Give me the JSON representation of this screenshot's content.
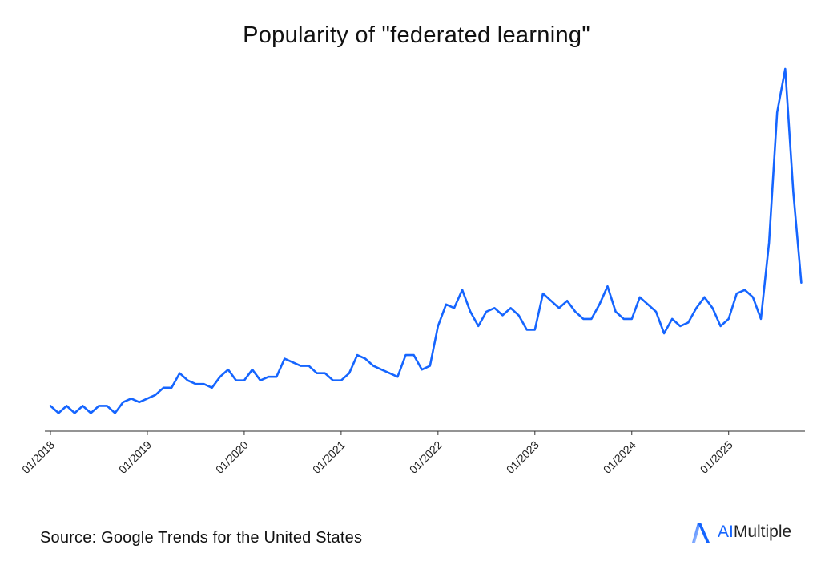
{
  "title": "Popularity of \"federated learning\"",
  "source": "Source: Google Trends for the United States",
  "logo": {
    "prefix": "AI",
    "suffix": "Multiple"
  },
  "colors": {
    "line": "#1565ff",
    "axis": "#555555",
    "text": "#111111",
    "brand": "#1565ff"
  },
  "chart_data": {
    "type": "line",
    "title": "Popularity of \"federated learning\"",
    "xlabel": "",
    "ylabel": "",
    "ylim": [
      0,
      100
    ],
    "grid": false,
    "legend": null,
    "x_tick_labels": [
      "01/2018",
      "01/2019",
      "01/2020",
      "01/2021",
      "01/2022",
      "01/2023",
      "01/2024",
      "01/2025"
    ],
    "x_start": "01/2018",
    "x_end": "10/2025",
    "frequency": "monthly",
    "series": [
      {
        "name": "federated learning",
        "values": [
          7,
          5,
          7,
          5,
          7,
          5,
          7,
          7,
          5,
          8,
          9,
          8,
          9,
          10,
          12,
          12,
          16,
          14,
          13,
          13,
          12,
          15,
          17,
          14,
          14,
          17,
          14,
          15,
          15,
          20,
          19,
          18,
          18,
          16,
          16,
          14,
          14,
          16,
          21,
          20,
          18,
          17,
          16,
          15,
          21,
          21,
          17,
          18,
          29,
          35,
          34,
          39,
          33,
          29,
          33,
          34,
          32,
          34,
          32,
          28,
          28,
          38,
          36,
          34,
          36,
          33,
          31,
          31,
          35,
          40,
          33,
          31,
          31,
          37,
          35,
          33,
          27,
          31,
          29,
          30,
          34,
          37,
          34,
          29,
          31,
          38,
          39,
          37,
          31,
          52,
          88,
          100,
          66,
          41
        ]
      }
    ],
    "annotations": [
      "Source: Google Trends for the United States"
    ]
  }
}
